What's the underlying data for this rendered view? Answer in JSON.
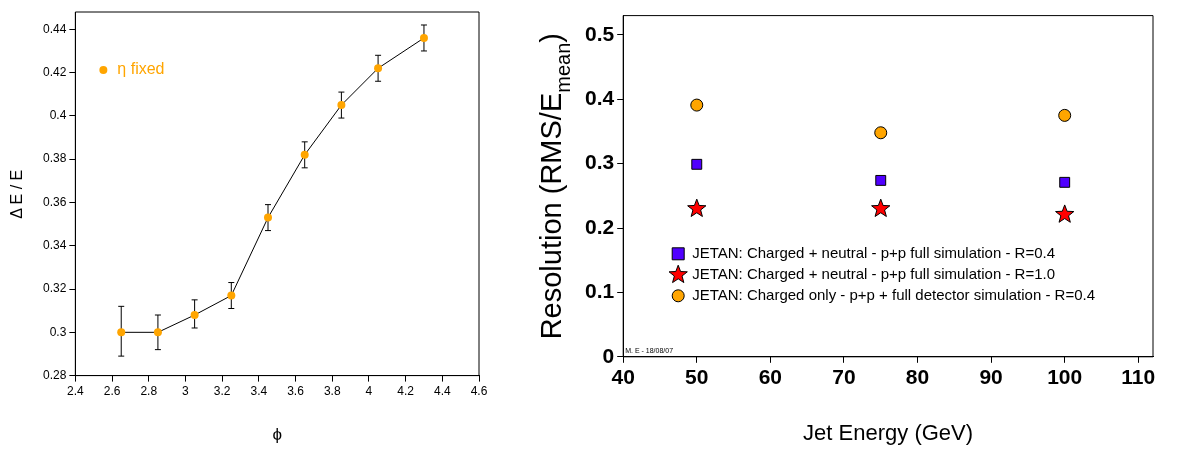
{
  "chart_data": [
    {
      "type": "line",
      "xlabel": "ϕ",
      "ylabel": "Δ E / E",
      "xlim": [
        2.4,
        4.6
      ],
      "xticks": [
        2.4,
        2.6,
        2.8,
        3,
        3.2,
        3.4,
        3.6,
        3.8,
        4,
        4.2,
        4.4,
        4.6
      ],
      "ylim": [
        0.28,
        0.448
      ],
      "yticks": [
        0.28,
        0.3,
        0.32,
        0.34,
        0.36,
        0.38,
        0.4,
        0.42,
        0.44
      ],
      "legend": "top left",
      "marker": "circle",
      "series": [
        {
          "name": "η fixed",
          "color": "#ffa500",
          "x": [
            2.65,
            2.85,
            3.05,
            3.25,
            3.45,
            3.65,
            3.85,
            4.05,
            4.3
          ],
          "values": [
            0.3,
            0.3,
            0.308,
            0.317,
            0.353,
            0.382,
            0.405,
            0.422,
            0.436
          ],
          "errors": [
            [
              0.289,
              0.312
            ],
            [
              0.292,
              0.308
            ],
            [
              0.302,
              0.315
            ],
            [
              0.311,
              0.323
            ],
            [
              0.347,
              0.359
            ],
            [
              0.376,
              0.388
            ],
            [
              0.399,
              0.411
            ],
            [
              0.416,
              0.428
            ],
            [
              0.43,
              0.442
            ]
          ]
        }
      ]
    },
    {
      "type": "scatter",
      "xlabel": "Jet Energy (GeV)",
      "ylabel": "Resolution (RMS/E$_{mean}$)",
      "xlim": [
        40,
        112
      ],
      "xticks": [
        40,
        50,
        60,
        70,
        80,
        90,
        100,
        110
      ],
      "ylim": [
        0,
        0.53
      ],
      "yticks": [
        0,
        0.1,
        0.2,
        0.3,
        0.4,
        0.5
      ],
      "legend": "bottom left",
      "annotations": [
        "M. E - 18/08/07"
      ],
      "series": [
        {
          "name": "JETAN: Charged + neutral - p+p full simulation - R=0.4",
          "color": "#5000ff",
          "marker": "square",
          "x": [
            50,
            75,
            100
          ],
          "values": [
            0.299,
            0.274,
            0.271
          ]
        },
        {
          "name": "JETAN: Charged + neutral - p+p full simulation - R=1.0",
          "color": "#ff0000",
          "marker": "star",
          "x": [
            50,
            75,
            100
          ],
          "values": [
            0.23,
            0.23,
            0.221
          ]
        },
        {
          "name": "JETAN: Charged only - p+p + full detector simulation - R=0.4",
          "color": "#ffa500",
          "marker": "circle",
          "x": [
            50,
            75,
            100
          ],
          "values": [
            0.391,
            0.348,
            0.375
          ]
        }
      ]
    }
  ]
}
